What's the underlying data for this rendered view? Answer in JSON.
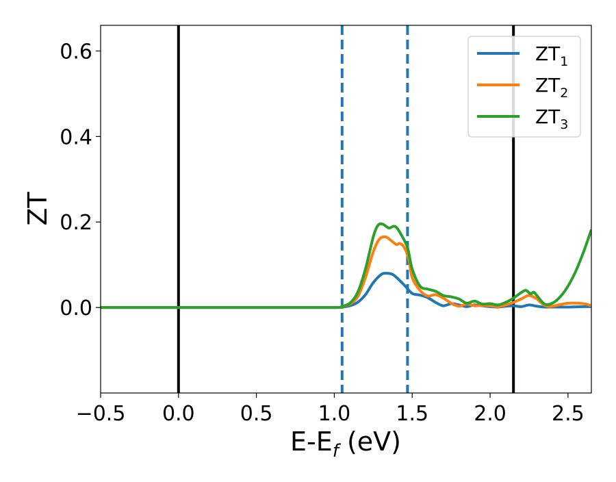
{
  "chart_data": {
    "type": "line",
    "title": "",
    "xlabel": "E-E",
    "xlabel_sub": "f",
    "xlabel_suffix": " (eV)",
    "ylabel": "ZT",
    "xlim": [
      -0.5,
      2.65
    ],
    "ylim": [
      -0.2,
      0.66
    ],
    "grid": false,
    "legend_position": "top-right",
    "xticks": [
      {
        "value": -0.5,
        "label": "−0.5"
      },
      {
        "value": 0.0,
        "label": "0.0"
      },
      {
        "value": 0.5,
        "label": "0.5"
      },
      {
        "value": 1.0,
        "label": "1.0"
      },
      {
        "value": 1.5,
        "label": "1.5"
      },
      {
        "value": 2.0,
        "label": "2.0"
      },
      {
        "value": 2.5,
        "label": "2.5"
      }
    ],
    "yticks": [
      {
        "value": 0.0,
        "label": "0.0"
      },
      {
        "value": 0.2,
        "label": "0.2"
      },
      {
        "value": 0.4,
        "label": "0.4"
      },
      {
        "value": 0.6,
        "label": "0.6"
      }
    ],
    "vertical_lines": [
      {
        "x": 0.0,
        "style": "solid",
        "color": "#000000"
      },
      {
        "x": 2.15,
        "style": "solid",
        "color": "#000000"
      },
      {
        "x": 1.05,
        "style": "dashed",
        "color": "#1f77b4"
      },
      {
        "x": 1.47,
        "style": "dashed",
        "color": "#1f77b4"
      }
    ],
    "series": [
      {
        "name": "ZT",
        "name_sub": "1",
        "color": "#1f77b4",
        "points": [
          [
            -0.5,
            0.0
          ],
          [
            0.5,
            0.0
          ],
          [
            1.0,
            0.0
          ],
          [
            1.05,
            0.001
          ],
          [
            1.1,
            0.004
          ],
          [
            1.15,
            0.012
          ],
          [
            1.2,
            0.03
          ],
          [
            1.25,
            0.058
          ],
          [
            1.3,
            0.077
          ],
          [
            1.33,
            0.08
          ],
          [
            1.37,
            0.078
          ],
          [
            1.4,
            0.07
          ],
          [
            1.45,
            0.052
          ],
          [
            1.5,
            0.033
          ],
          [
            1.55,
            0.029
          ],
          [
            1.6,
            0.023
          ],
          [
            1.65,
            0.012
          ],
          [
            1.7,
            0.004
          ],
          [
            1.75,
            0.009
          ],
          [
            1.8,
            0.006
          ],
          [
            1.85,
            0.002
          ],
          [
            1.9,
            0.006
          ],
          [
            1.95,
            0.004
          ],
          [
            2.0,
            0.002
          ],
          [
            2.05,
            0.001
          ],
          [
            2.1,
            0.003
          ],
          [
            2.15,
            0.004
          ],
          [
            2.2,
            0.002
          ],
          [
            2.25,
            0.006
          ],
          [
            2.3,
            0.003
          ],
          [
            2.35,
            0.001
          ],
          [
            2.4,
            0.001
          ],
          [
            2.5,
            0.001
          ],
          [
            2.6,
            0.002
          ],
          [
            2.65,
            0.002
          ]
        ]
      },
      {
        "name": "ZT",
        "name_sub": "2",
        "color": "#ff7f0e",
        "points": [
          [
            -0.5,
            0.0
          ],
          [
            0.5,
            0.0
          ],
          [
            1.0,
            0.0
          ],
          [
            1.05,
            0.002
          ],
          [
            1.1,
            0.008
          ],
          [
            1.15,
            0.025
          ],
          [
            1.2,
            0.07
          ],
          [
            1.25,
            0.13
          ],
          [
            1.29,
            0.16
          ],
          [
            1.33,
            0.165
          ],
          [
            1.37,
            0.155
          ],
          [
            1.4,
            0.147
          ],
          [
            1.42,
            0.15
          ],
          [
            1.45,
            0.14
          ],
          [
            1.48,
            0.11
          ],
          [
            1.5,
            0.07
          ],
          [
            1.55,
            0.04
          ],
          [
            1.6,
            0.027
          ],
          [
            1.65,
            0.03
          ],
          [
            1.7,
            0.022
          ],
          [
            1.75,
            0.01
          ],
          [
            1.8,
            0.003
          ],
          [
            1.85,
            0.008
          ],
          [
            1.9,
            0.004
          ],
          [
            1.95,
            0.005
          ],
          [
            2.0,
            0.004
          ],
          [
            2.05,
            0.002
          ],
          [
            2.1,
            0.006
          ],
          [
            2.15,
            0.012
          ],
          [
            2.2,
            0.02
          ],
          [
            2.25,
            0.028
          ],
          [
            2.3,
            0.02
          ],
          [
            2.35,
            0.005
          ],
          [
            2.4,
            0.003
          ],
          [
            2.5,
            0.01
          ],
          [
            2.6,
            0.009
          ],
          [
            2.65,
            0.004
          ]
        ]
      },
      {
        "name": "ZT",
        "name_sub": "3",
        "color": "#2ca02c",
        "points": [
          [
            -0.5,
            0.0
          ],
          [
            0.5,
            0.0
          ],
          [
            1.0,
            0.0
          ],
          [
            1.05,
            0.003
          ],
          [
            1.1,
            0.01
          ],
          [
            1.15,
            0.035
          ],
          [
            1.2,
            0.09
          ],
          [
            1.25,
            0.165
          ],
          [
            1.28,
            0.192
          ],
          [
            1.31,
            0.195
          ],
          [
            1.35,
            0.186
          ],
          [
            1.38,
            0.19
          ],
          [
            1.4,
            0.187
          ],
          [
            1.43,
            0.17
          ],
          [
            1.47,
            0.14
          ],
          [
            1.5,
            0.09
          ],
          [
            1.55,
            0.05
          ],
          [
            1.6,
            0.043
          ],
          [
            1.65,
            0.038
          ],
          [
            1.7,
            0.028
          ],
          [
            1.75,
            0.025
          ],
          [
            1.8,
            0.02
          ],
          [
            1.85,
            0.01
          ],
          [
            1.9,
            0.015
          ],
          [
            1.95,
            0.008
          ],
          [
            2.0,
            0.009
          ],
          [
            2.05,
            0.006
          ],
          [
            2.1,
            0.012
          ],
          [
            2.15,
            0.022
          ],
          [
            2.2,
            0.035
          ],
          [
            2.23,
            0.04
          ],
          [
            2.26,
            0.032
          ],
          [
            2.28,
            0.036
          ],
          [
            2.3,
            0.028
          ],
          [
            2.35,
            0.008
          ],
          [
            2.4,
            0.01
          ],
          [
            2.45,
            0.025
          ],
          [
            2.5,
            0.05
          ],
          [
            2.55,
            0.085
          ],
          [
            2.6,
            0.13
          ],
          [
            2.65,
            0.182
          ]
        ]
      }
    ]
  }
}
